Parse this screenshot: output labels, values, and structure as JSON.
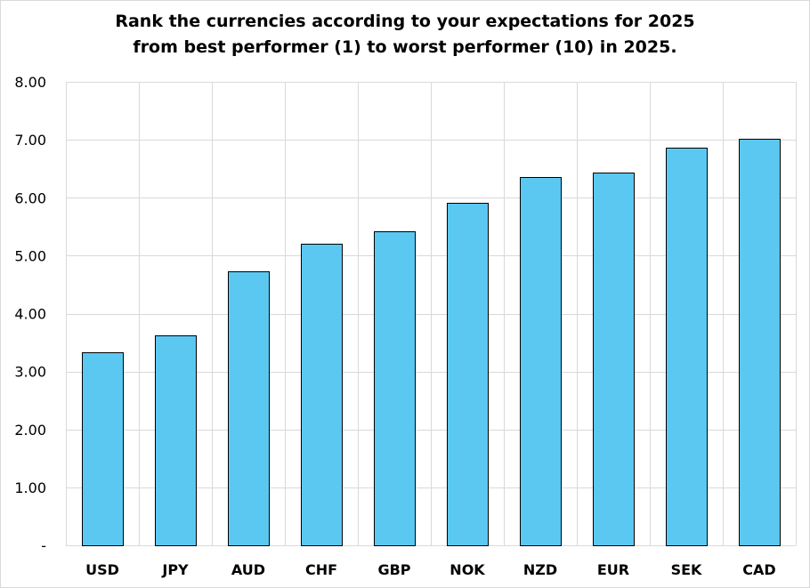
{
  "chart_data": {
    "type": "bar",
    "title_lines": [
      "Rank the currencies according to your expectations for 2025",
      "from best performer (1) to worst performer (10) in 2025."
    ],
    "categories": [
      "USD",
      "JPY",
      "AUD",
      "CHF",
      "GBP",
      "NOK",
      "NZD",
      "EUR",
      "SEK",
      "CAD"
    ],
    "values": [
      3.33,
      3.62,
      4.73,
      5.2,
      5.42,
      5.91,
      6.35,
      6.44,
      6.86,
      7.02
    ],
    "ylim": [
      0,
      8
    ],
    "y_ticks": [
      0,
      1,
      2,
      3,
      4,
      5,
      6,
      7,
      8
    ],
    "y_tick_labels": [
      "-",
      "1.00",
      "2.00",
      "3.00",
      "4.00",
      "5.00",
      "6.00",
      "7.00",
      "8.00"
    ],
    "grid": true,
    "bar_color": "#5bc8f2",
    "bar_edge_color": "#000000",
    "legend": "none"
  }
}
